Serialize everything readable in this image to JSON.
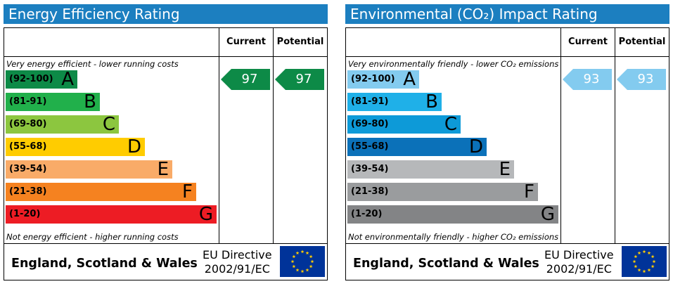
{
  "colors": {
    "header_blue": "#1c7fc0",
    "energy_bands": [
      "#0d8a47",
      "#21b04b",
      "#8cc63f",
      "#ffcc00",
      "#f9ab68",
      "#f58220",
      "#ed1c24"
    ],
    "env_bands": [
      "#83cbef",
      "#1fb0e8",
      "#0d9ad8",
      "#0b71b9",
      "#b6b8ba",
      "#9a9c9e",
      "#838486"
    ],
    "energy_arrow": "#0d8a47",
    "env_arrow": "#83cbef"
  },
  "panels": [
    {
      "title": "Energy Efficiency Rating",
      "col_current": "Current",
      "col_potential": "Potential",
      "top_note": "Very energy efficient - lower running costs",
      "bottom_note": "Not energy efficient - higher running costs",
      "footer_region": "England, Scotland & Wales",
      "footer_directive_line1": "EU Directive",
      "footer_directive_line2": "2002/91/EC",
      "flag_icon": "eu-flag-icon"
    },
    {
      "title": "Environmental (CO₂) Impact Rating",
      "col_current": "Current",
      "col_potential": "Potential",
      "top_note": "Very environmentally friendly - lower CO₂ emissions",
      "bottom_note": "Not environmentally friendly - higher CO₂ emissions",
      "footer_region": "England, Scotland & Wales",
      "footer_directive_line1": "EU Directive",
      "footer_directive_line2": "2002/91/EC",
      "flag_icon": "eu-flag-icon"
    }
  ],
  "chart_data": [
    {
      "type": "bar",
      "title": "Energy Efficiency Rating",
      "categories": [
        "(92-100) A",
        "(81-91) B",
        "(69-80) C",
        "(55-68) D",
        "(39-54) E",
        "(21-38) F",
        "(1-20) G"
      ],
      "bands": [
        {
          "range": "(92-100)",
          "letter": "A"
        },
        {
          "range": "(81-91)",
          "letter": "B"
        },
        {
          "range": "(69-80)",
          "letter": "C"
        },
        {
          "range": "(55-68)",
          "letter": "D"
        },
        {
          "range": "(39-54)",
          "letter": "E"
        },
        {
          "range": "(21-38)",
          "letter": "F"
        },
        {
          "range": "(1-20)",
          "letter": "G"
        }
      ],
      "current": 97,
      "potential": 97
    },
    {
      "type": "bar",
      "title": "Environmental (CO₂) Impact Rating",
      "categories": [
        "(92-100) A",
        "(81-91) B",
        "(69-80) C",
        "(55-68) D",
        "(39-54) E",
        "(21-38) F",
        "(1-20) G"
      ],
      "bands": [
        {
          "range": "(92-100)",
          "letter": "A"
        },
        {
          "range": "(81-91)",
          "letter": "B"
        },
        {
          "range": "(69-80)",
          "letter": "C"
        },
        {
          "range": "(55-68)",
          "letter": "D"
        },
        {
          "range": "(39-54)",
          "letter": "E"
        },
        {
          "range": "(21-38)",
          "letter": "F"
        },
        {
          "range": "(1-20)",
          "letter": "G"
        }
      ],
      "current": 93,
      "potential": 93
    }
  ]
}
